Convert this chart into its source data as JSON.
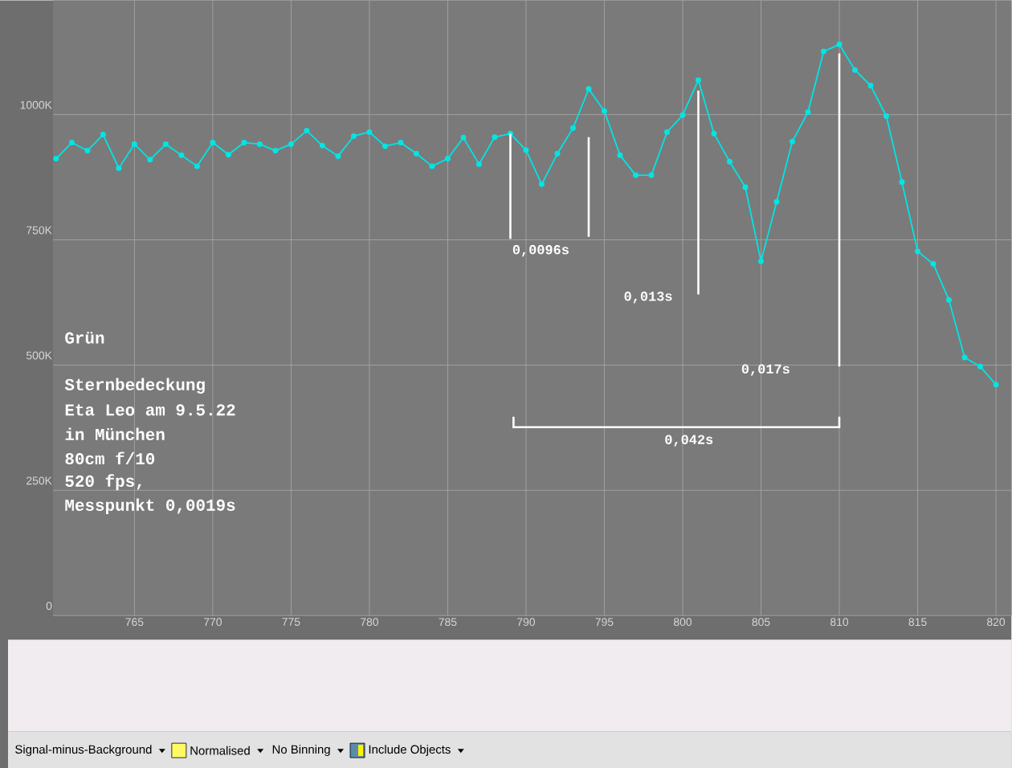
{
  "chart_data": {
    "type": "line",
    "x": [
      760,
      761,
      762,
      763,
      764,
      765,
      766,
      767,
      768,
      769,
      770,
      771,
      772,
      773,
      774,
      775,
      776,
      777,
      778,
      779,
      780,
      781,
      782,
      783,
      784,
      785,
      786,
      787,
      788,
      789,
      790,
      791,
      792,
      793,
      794,
      795,
      796,
      797,
      798,
      799,
      800,
      801,
      802,
      803,
      804,
      805,
      806,
      807,
      808,
      809,
      810,
      811,
      812,
      813,
      814,
      815,
      816,
      817,
      818,
      819,
      820
    ],
    "values": [
      912000,
      944000,
      928000,
      960000,
      893000,
      941000,
      910000,
      941000,
      919000,
      897000,
      944000,
      920000,
      944000,
      941000,
      928000,
      941000,
      968000,
      938000,
      917000,
      957000,
      965000,
      937000,
      944000,
      922000,
      897000,
      912000,
      954000,
      901000,
      955000,
      962000,
      929000,
      861000,
      922000,
      973000,
      1051000,
      1007000,
      919000,
      879000,
      879000,
      965000,
      999000,
      1069000,
      962000,
      906000,
      855000,
      707000,
      826000,
      946000,
      1005000,
      1126000,
      1140000,
      1089000,
      1058000,
      997000,
      865000,
      727000,
      702000,
      630000,
      515000,
      497000,
      461000
    ],
    "color": "#00e5e5",
    "marker": "circle",
    "grid": true,
    "xlim": [
      759.8,
      821
    ],
    "ylim": [
      0,
      1228000
    ],
    "xticks": [
      765,
      770,
      775,
      780,
      785,
      790,
      795,
      800,
      805,
      810,
      815,
      820
    ],
    "yticks": [
      0,
      {
        "value": 250000,
        "label": "250K"
      },
      {
        "value": 500000,
        "label": "500K"
      },
      {
        "value": 750000,
        "label": "750K"
      },
      {
        "value": 1000000,
        "label": "1000K"
      }
    ],
    "annotations": [
      {
        "text": "0,0096s",
        "x": 789,
        "y": 962000
      },
      "0,013s",
      "0,017s",
      "0,042s",
      "Grün",
      "Sternbedeckung",
      "Eta Leo am 9.5.22",
      "in München",
      "80cm f/10",
      "520 fps,",
      "Messpunkt 0,0019s",
      "Signal-minus-Background",
      "Normalised",
      "No Binning",
      "Include Objects"
    ]
  }
}
